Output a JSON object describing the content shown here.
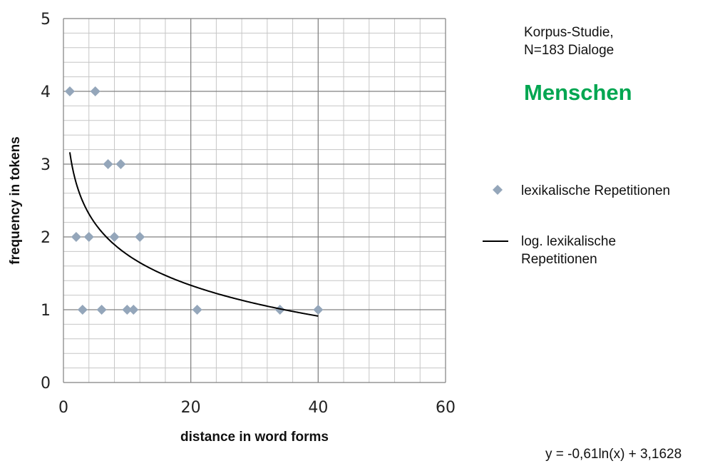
{
  "chart_data": {
    "type": "scatter",
    "annotation": "Korpus-Studie, N=183 Dialoge",
    "highlight": "Menschen",
    "highlight_color": "#00a651",
    "x_label": "distance in word forms",
    "y_label": "frequency in tokens",
    "x": [
      1,
      5,
      7,
      9,
      2,
      4,
      8,
      12,
      3,
      6,
      10,
      11,
      21,
      34,
      40
    ],
    "series": [
      {
        "name": "lexikalische Repetitionen",
        "color": "#94a6ba",
        "values": [
          4,
          4,
          3,
          3,
          2,
          2,
          2,
          2,
          1,
          1,
          1,
          1,
          1,
          1,
          1
        ]
      }
    ],
    "trendline": {
      "name": "log. lexikalische Repetitionen",
      "color": "#000000",
      "equation": "y = -0,61ln(x) + 3,1628",
      "a": -0.61,
      "b": 3.1628,
      "x_range": [
        1,
        40
      ]
    },
    "xlim": [
      0,
      60
    ],
    "xticks": [
      0,
      20,
      40,
      60
    ],
    "ylim": [
      0,
      5
    ],
    "yticks": [
      0,
      1,
      2,
      3,
      4,
      5
    ],
    "grid": true,
    "minor_grid_step": [
      4,
      0.2
    ]
  }
}
